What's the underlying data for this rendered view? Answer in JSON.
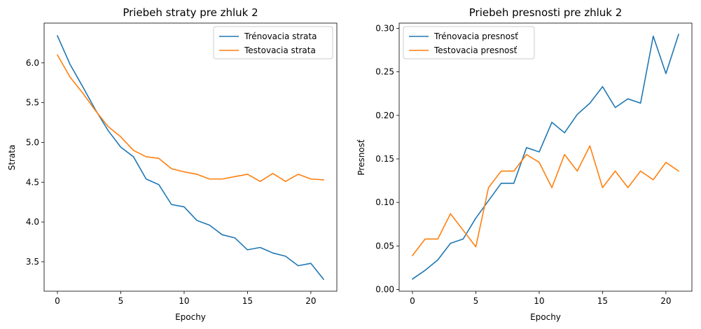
{
  "colors": {
    "train": "#1f77b4",
    "test": "#ff7f0e"
  },
  "chart_data": [
    {
      "type": "line",
      "title": "Priebeh straty pre zhluk 2",
      "xlabel": "Epochy",
      "ylabel": "Strata",
      "xlim": [
        -1.05,
        22.05
      ],
      "ylim": [
        3.13,
        6.5
      ],
      "xticks": [
        0,
        5,
        10,
        15,
        20
      ],
      "xtick_labels": [
        "0",
        "5",
        "10",
        "15",
        "20"
      ],
      "yticks": [
        3.5,
        4.0,
        4.5,
        5.0,
        5.5,
        6.0
      ],
      "ytick_labels": [
        "3.5",
        "4.0",
        "4.5",
        "5.0",
        "5.5",
        "6.0"
      ],
      "legend_position": "top-right",
      "x": [
        0,
        1,
        2,
        3,
        4,
        5,
        6,
        7,
        8,
        9,
        10,
        11,
        12,
        13,
        14,
        15,
        16,
        17,
        18,
        19,
        20,
        21
      ],
      "series": [
        {
          "name": "Trénovacia strata",
          "color_key": "train",
          "values": [
            6.34,
            5.98,
            5.7,
            5.41,
            5.15,
            4.94,
            4.82,
            4.54,
            4.47,
            4.22,
            4.19,
            4.02,
            3.96,
            3.84,
            3.8,
            3.65,
            3.68,
            3.61,
            3.57,
            3.45,
            3.48,
            3.28
          ]
        },
        {
          "name": "Testovacia strata",
          "color_key": "test",
          "values": [
            6.1,
            5.82,
            5.62,
            5.4,
            5.2,
            5.07,
            4.9,
            4.82,
            4.8,
            4.67,
            4.63,
            4.6,
            4.54,
            4.54,
            4.57,
            4.6,
            4.51,
            4.61,
            4.51,
            4.6,
            4.54,
            4.53
          ]
        }
      ]
    },
    {
      "type": "line",
      "title": "Priebeh presnosti pre zhluk 2",
      "xlabel": "Epochy",
      "ylabel": "Presnosť",
      "xlim": [
        -1.05,
        22.05
      ],
      "ylim": [
        -0.002,
        0.306
      ],
      "xticks": [
        0,
        5,
        10,
        15,
        20
      ],
      "xtick_labels": [
        "0",
        "5",
        "10",
        "15",
        "20"
      ],
      "yticks": [
        0.0,
        0.05,
        0.1,
        0.15,
        0.2,
        0.25,
        0.3
      ],
      "ytick_labels": [
        "0.00",
        "0.05",
        "0.10",
        "0.15",
        "0.20",
        "0.25",
        "0.30"
      ],
      "legend_position": "top-left",
      "x": [
        0,
        1,
        2,
        3,
        4,
        5,
        6,
        7,
        8,
        9,
        10,
        11,
        12,
        13,
        14,
        15,
        16,
        17,
        18,
        19,
        20,
        21
      ],
      "series": [
        {
          "name": "Trénovacia presnosť",
          "color_key": "train",
          "values": [
            0.012,
            0.022,
            0.034,
            0.053,
            0.058,
            0.082,
            0.102,
            0.122,
            0.122,
            0.163,
            0.158,
            0.192,
            0.18,
            0.201,
            0.214,
            0.233,
            0.209,
            0.219,
            0.214,
            0.291,
            0.248,
            0.293
          ]
        },
        {
          "name": "Testovacia presnosť",
          "color_key": "test",
          "values": [
            0.039,
            0.058,
            0.058,
            0.087,
            0.068,
            0.049,
            0.117,
            0.136,
            0.136,
            0.155,
            0.146,
            0.117,
            0.155,
            0.136,
            0.165,
            0.117,
            0.136,
            0.117,
            0.136,
            0.126,
            0.146,
            0.136
          ]
        }
      ]
    }
  ]
}
